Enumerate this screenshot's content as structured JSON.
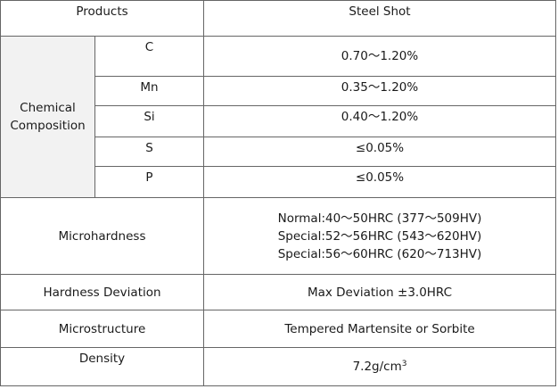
{
  "table": {
    "header": {
      "products": "Products",
      "steel_shot": "Steel Shot"
    },
    "chemical_composition": {
      "label_line1": "Chemical",
      "label_line2": "Composition",
      "elements": [
        {
          "symbol": "C",
          "value": "0.70～1.20%"
        },
        {
          "symbol": "Mn",
          "value": "0.35～1.20%"
        },
        {
          "symbol": "Si",
          "value": "0.40～1.20%"
        },
        {
          "symbol": "S",
          "value": "≤0.05%"
        },
        {
          "symbol": "P",
          "value": "≤0.05%"
        }
      ]
    },
    "microhardness": {
      "label": "Microhardness",
      "lines": [
        "Normal:40～50HRC (377～509HV)",
        "Special:52～56HRC (543～620HV)",
        "Special:56～60HRC (620～713HV)"
      ]
    },
    "hardness_deviation": {
      "label": "Hardness Deviation",
      "value": "Max Deviation ±3.0HRC"
    },
    "microstructure": {
      "label": "Microstructure",
      "value": "Tempered Martensite or Sorbite"
    },
    "density": {
      "label": "Density",
      "value": "7.2g/cm",
      "value_sup": "3"
    }
  }
}
